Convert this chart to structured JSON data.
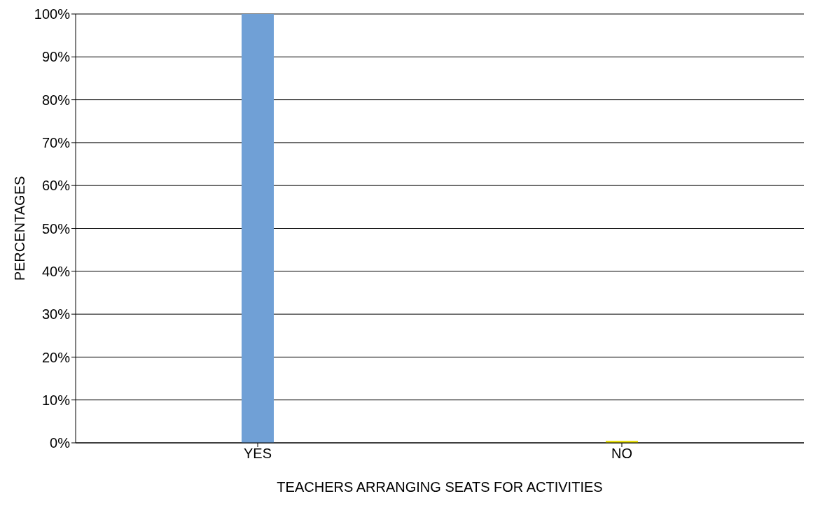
{
  "chart_data": {
    "type": "bar",
    "xlabel": "TEACHERS ARRANGING SEATS FOR ACTIVITIES",
    "ylabel": "PERCENTAGES",
    "categories": [
      "YES",
      "NO"
    ],
    "values": [
      100,
      0.5
    ],
    "colors": [
      "#70a0d6",
      "#e8e010"
    ],
    "ylim": [
      0,
      100
    ],
    "yticks": [
      {
        "value": 0,
        "label": "0%"
      },
      {
        "value": 10,
        "label": "10%"
      },
      {
        "value": 20,
        "label": "20%"
      },
      {
        "value": 30,
        "label": "30%"
      },
      {
        "value": 40,
        "label": "40%"
      },
      {
        "value": 50,
        "label": "50%"
      },
      {
        "value": 60,
        "label": "60%"
      },
      {
        "value": 70,
        "label": "70%"
      },
      {
        "value": 80,
        "label": "80%"
      },
      {
        "value": 90,
        "label": "90%"
      },
      {
        "value": 100,
        "label": "100%"
      }
    ],
    "grid": "y"
  }
}
